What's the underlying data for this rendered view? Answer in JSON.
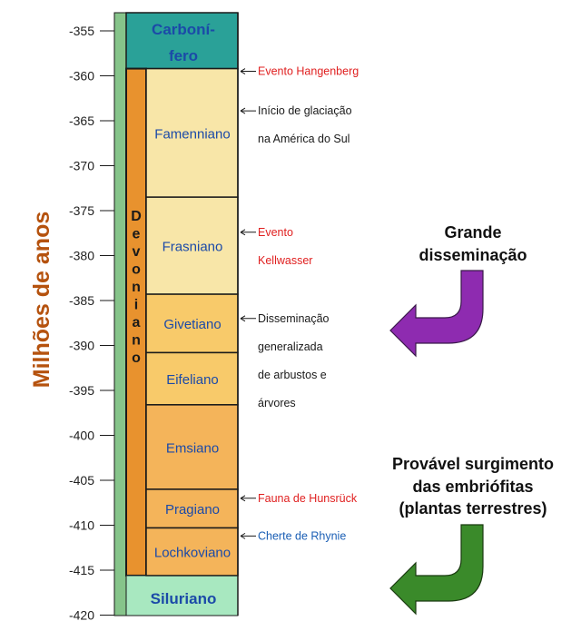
{
  "axis": {
    "label": "Milhões de anos",
    "ticks": [
      {
        "value": -355,
        "label": "-355"
      },
      {
        "value": -360,
        "label": "-360"
      },
      {
        "value": -365,
        "label": "-365"
      },
      {
        "value": -370,
        "label": "-370"
      },
      {
        "value": -375,
        "label": "-375"
      },
      {
        "value": -380,
        "label": "-380"
      },
      {
        "value": -385,
        "label": "-385"
      },
      {
        "value": -390,
        "label": "-390"
      },
      {
        "value": -395,
        "label": "-395"
      },
      {
        "value": -400,
        "label": "-400"
      },
      {
        "value": -405,
        "label": "-405"
      },
      {
        "value": -410,
        "label": "-410"
      },
      {
        "value": -415,
        "label": "-415"
      },
      {
        "value": -420,
        "label": "-420"
      }
    ],
    "range": [
      -353.5,
      -420
    ]
  },
  "periods": {
    "carboniferous": {
      "label_lines": [
        "Carboní-",
        "fero"
      ],
      "from": -353.5,
      "to": -359.2,
      "color": "#2aa198"
    },
    "devonian": {
      "letters": [
        "D",
        "e",
        "v",
        "o",
        "n",
        "i",
        "a",
        "n",
        "o"
      ],
      "from": -359.2,
      "to": -415.6,
      "color": "#e8922e"
    },
    "silurian": {
      "label": "Siluriano",
      "from": -415.6,
      "to": -420,
      "color": "#a8e8c0"
    }
  },
  "stages": [
    {
      "id": "famennian",
      "label": "Famenniano",
      "from": -359.2,
      "to": -373.5,
      "color": "#f8e6a8"
    },
    {
      "id": "frasnian",
      "label": "Frasniano",
      "from": -373.5,
      "to": -384.3,
      "color": "#f8e6a8"
    },
    {
      "id": "givetian",
      "label": "Givetiano",
      "from": -384.3,
      "to": -390.8,
      "color": "#f8ca6a"
    },
    {
      "id": "eifelian",
      "label": "Eifeliano",
      "from": -390.8,
      "to": -396.6,
      "color": "#f8ca6a"
    },
    {
      "id": "emsian",
      "label": "Emsiano",
      "from": -396.6,
      "to": -406.0,
      "color": "#f4b45a"
    },
    {
      "id": "pragian",
      "label": "Pragiano",
      "from": -406.0,
      "to": -410.3,
      "color": "#f4b45a"
    },
    {
      "id": "lochkovian",
      "label": "Lochkoviano",
      "from": -410.3,
      "to": -415.6,
      "color": "#f4b45a"
    }
  ],
  "events": [
    {
      "id": "hangenberg",
      "at": -359.5,
      "color": "#e02020",
      "lines": [
        "Evento Hangenberg"
      ]
    },
    {
      "id": "glaciation",
      "at": -363.9,
      "color": "#1a1a1a",
      "lines": [
        "Início de glaciação",
        "na América do Sul"
      ]
    },
    {
      "id": "kellwasser",
      "at": -377.4,
      "color": "#e02020",
      "lines": [
        "Evento",
        "Kellwasser"
      ]
    },
    {
      "id": "shrubs",
      "at": -387.0,
      "color": "#1a1a1a",
      "lines": [
        "Disseminação",
        "generalizada",
        "de arbustos e",
        "árvores"
      ]
    },
    {
      "id": "hunsruck",
      "at": -407.0,
      "color": "#e02020",
      "lines": [
        "Fauna de Hunsrück"
      ]
    },
    {
      "id": "rhynie",
      "at": -411.2,
      "color": "#1b5fb5",
      "lines": [
        "Cherte de Rhynie"
      ]
    }
  ],
  "callouts": {
    "spread": {
      "lines": [
        "Grande",
        "disseminação"
      ],
      "arrow_color": "#8e2bb0"
    },
    "embryophytes": {
      "lines": [
        "Provável surgimento",
        "das embriófitas",
        "(plantas terrestres)"
      ],
      "arrow_color": "#3a8a2a"
    }
  },
  "colors": {
    "axis_label": "#b5520e",
    "stage_text": "#1b4aa8",
    "period_text": "#1b4aa8",
    "green_strip": "#86c48a",
    "border": "#1a1a1a"
  }
}
